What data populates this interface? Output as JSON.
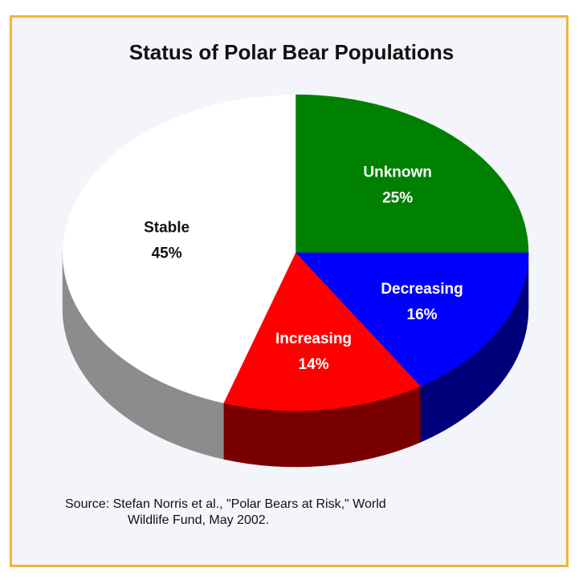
{
  "chart_data": {
    "type": "pie",
    "title": "Status of Polar Bear Populations",
    "slices": [
      {
        "label": "Unknown",
        "value": 25,
        "value_label": "25%",
        "color": "#008000",
        "side_color": "#004d00",
        "text_color": "#ffffff"
      },
      {
        "label": "Decreasing",
        "value": 16,
        "value_label": "16%",
        "color": "#0000ff",
        "side_color": "#00007a",
        "text_color": "#ffffff"
      },
      {
        "label": "Increasing",
        "value": 14,
        "value_label": "14%",
        "color": "#ff0000",
        "side_color": "#7a0000",
        "text_color": "#ffffff"
      },
      {
        "label": "Stable",
        "value": 45,
        "value_label": "45%",
        "color": "#ffffff",
        "side_color": "#8c8c8c",
        "text_color": "#111111"
      }
    ],
    "style": "3d",
    "legend": "none"
  },
  "source": {
    "line1": "Source: Stefan Norris et al., \"Polar Bears at Risk,\" World",
    "line2": "Wildlife Fund, May 2002."
  }
}
